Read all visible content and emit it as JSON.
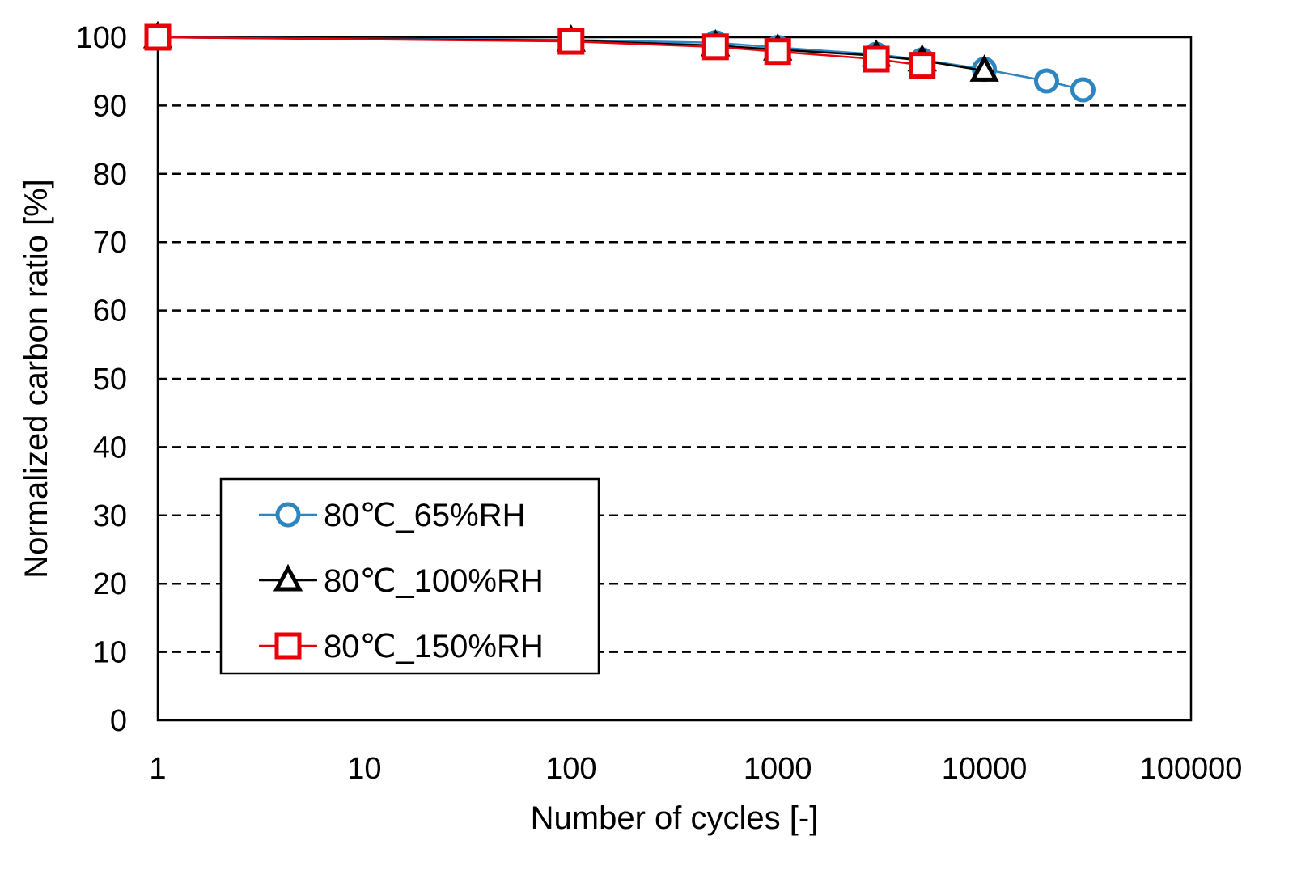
{
  "chart_data": {
    "type": "line",
    "xlabel": "Number of cycles [-]",
    "ylabel": "Normalized carbon ratio [%]",
    "x_scale": "log",
    "xlim": [
      1,
      100000
    ],
    "ylim": [
      0,
      100
    ],
    "x_ticks": [
      "1",
      "10",
      "100",
      "1000",
      "10000",
      "100000"
    ],
    "y_ticks": [
      "0",
      "10",
      "20",
      "30",
      "40",
      "50",
      "60",
      "70",
      "80",
      "90",
      "100"
    ],
    "grid": "horizontal dashed",
    "legend_position": "bottom-left",
    "series": [
      {
        "name": "80℃_65%RH",
        "color": "#2E86C1",
        "marker": "circle",
        "x": [
          1,
          100,
          500,
          1000,
          3000,
          5000,
          10000,
          20000,
          30000
        ],
        "y": [
          100,
          99.6,
          99.2,
          98.5,
          97.5,
          96.7,
          95.3,
          93.6,
          92.3
        ]
      },
      {
        "name": "80℃_100%RH",
        "color": "#000000",
        "marker": "triangle",
        "x": [
          1,
          100,
          500,
          1000,
          3000,
          5000,
          10000
        ],
        "y": [
          100,
          99.5,
          98.8,
          98.2,
          97.3,
          96.6,
          95.1
        ]
      },
      {
        "name": "80℃_150%RH",
        "color": "#E8000B",
        "marker": "square",
        "x": [
          1,
          100,
          500,
          1000,
          3000,
          5000
        ],
        "y": [
          100,
          99.4,
          98.6,
          97.9,
          96.8,
          95.9
        ]
      }
    ]
  }
}
